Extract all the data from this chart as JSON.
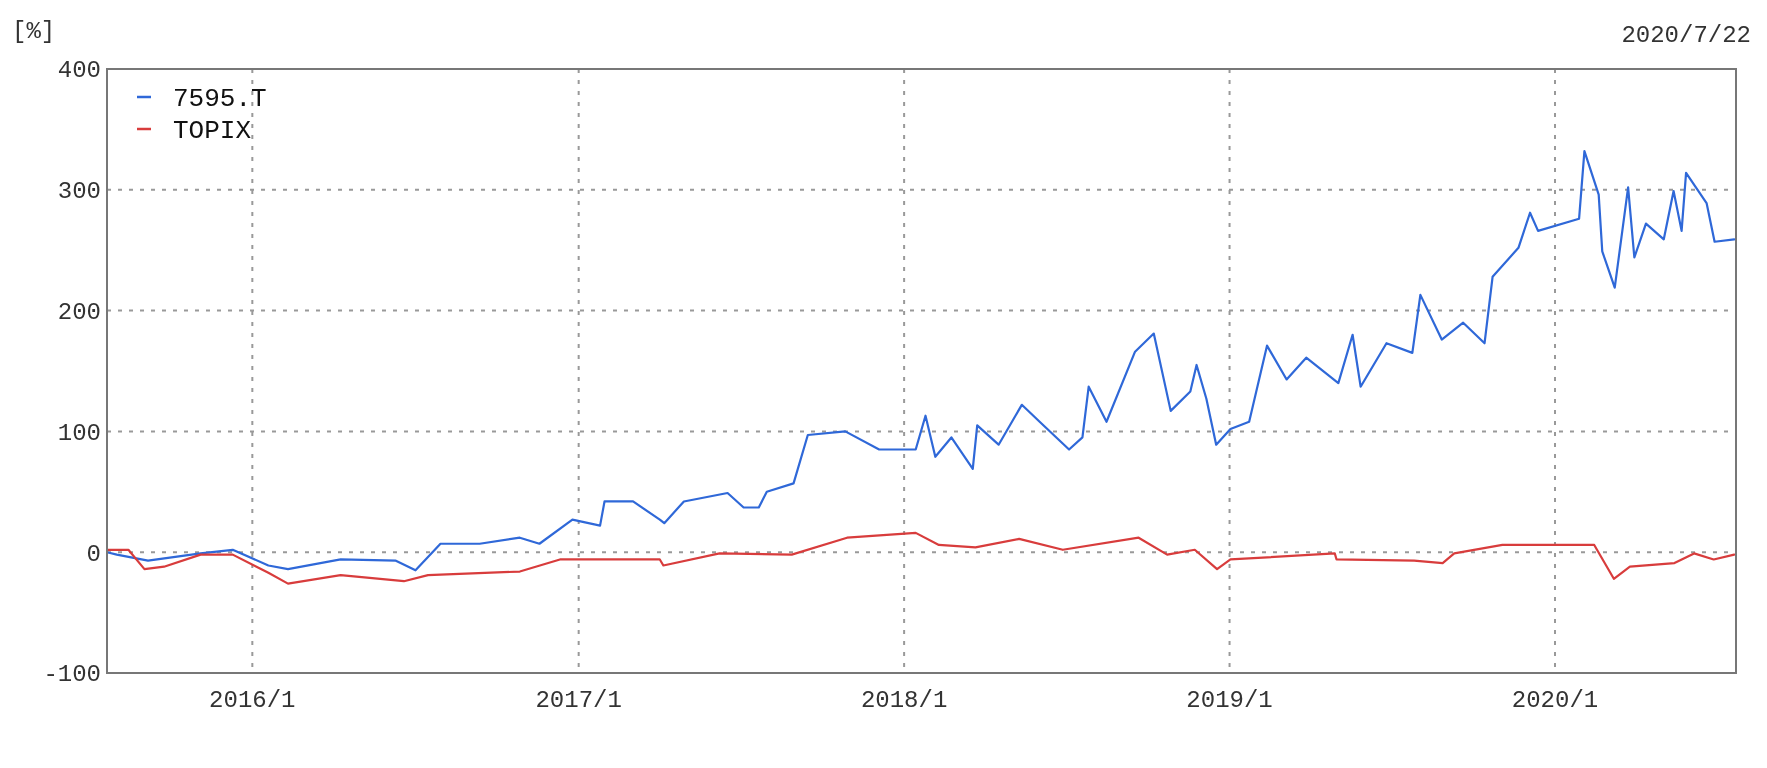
{
  "chart_data": {
    "type": "line",
    "ylabel": "[%]",
    "subtitle": "2020/7/22",
    "xlim": [
      "2015-07-22",
      "2020-07-22"
    ],
    "ylim": [
      -100,
      400
    ],
    "xticks": [
      {
        "value": "2016-01-01",
        "label": "2016/1"
      },
      {
        "value": "2017-01-01",
        "label": "2017/1"
      },
      {
        "value": "2018-01-01",
        "label": "2018/1"
      },
      {
        "value": "2019-01-01",
        "label": "2019/1"
      },
      {
        "value": "2020-01-01",
        "label": "2020/1"
      }
    ],
    "yticks": [
      -100,
      0,
      100,
      200,
      300,
      400
    ],
    "grid": true,
    "legend": "top left",
    "line_style": "solid",
    "marker": "none",
    "series": [
      {
        "name": "7595.T",
        "color": "#2f68d8",
        "x": [
          "2015-07-22",
          "2015-08-02",
          "2015-09-06",
          "2015-11-04",
          "2015-12-10",
          "2016-01-19",
          "2016-02-10",
          "2016-04-09",
          "2016-06-10",
          "2016-07-02",
          "2016-07-30",
          "2016-09-12",
          "2016-10-27",
          "2016-11-18",
          "2016-12-25",
          "2017-01-25",
          "2017-01-30",
          "2017-03-03",
          "2017-04-02",
          "2017-04-07",
          "2017-04-29",
          "2017-06-17",
          "2017-07-05",
          "2017-07-22",
          "2017-07-31",
          "2017-08-30",
          "2017-09-15",
          "2017-10-27",
          "2017-12-04",
          "2018-01-14",
          "2018-01-25",
          "2018-02-05",
          "2018-02-23",
          "2018-03-19",
          "2018-03-24",
          "2018-04-17",
          "2018-05-13",
          "2018-06-02",
          "2018-07-05",
          "2018-07-20",
          "2018-07-27",
          "2018-08-16",
          "2018-09-17",
          "2018-10-08",
          "2018-10-27",
          "2018-11-18",
          "2018-11-25",
          "2018-12-06",
          "2018-12-17",
          "2019-01-02",
          "2019-01-23",
          "2019-02-12",
          "2019-03-06",
          "2019-03-28",
          "2019-05-03",
          "2019-05-19",
          "2019-05-28",
          "2019-06-26",
          "2019-07-25",
          "2019-08-03",
          "2019-08-27",
          "2019-09-20",
          "2019-10-14",
          "2019-10-23",
          "2019-11-21",
          "2019-12-04",
          "2019-12-13",
          "2020-01-28",
          "2020-02-03",
          "2020-02-19",
          "2020-02-23",
          "2020-03-08",
          "2020-03-23",
          "2020-03-30",
          "2020-04-12",
          "2020-05-02",
          "2020-05-13",
          "2020-05-22",
          "2020-05-27",
          "2020-06-19",
          "2020-06-28",
          "2020-07-20"
        ],
        "values": [
          0,
          -2,
          -7,
          -1,
          2,
          -11,
          -14,
          -6,
          -7,
          -15,
          7,
          7,
          12,
          7,
          27,
          22,
          42,
          42,
          27,
          24,
          42,
          49,
          37,
          37,
          50,
          57,
          97,
          100,
          85,
          85,
          113,
          79,
          95,
          69,
          105,
          89,
          122,
          108,
          85,
          95,
          137,
          108,
          166,
          181,
          117,
          133,
          155,
          127,
          89,
          102,
          108,
          171,
          143,
          161,
          140,
          180,
          137,
          173,
          165,
          213,
          176,
          190,
          173,
          228,
          252,
          281,
          266,
          276,
          332,
          296,
          249,
          219,
          302,
          244,
          272,
          259,
          299,
          266,
          314,
          289,
          257,
          259
        ]
      },
      {
        "name": "TOPIX",
        "color": "#d83c3c",
        "x": [
          "2015-07-22",
          "2015-08-15",
          "2015-09-02",
          "2015-09-24",
          "2015-11-04",
          "2015-12-10",
          "2016-01-19",
          "2016-02-10",
          "2016-04-09",
          "2016-06-19",
          "2016-07-16",
          "2016-10-27",
          "2016-12-11",
          "2017-04-02",
          "2017-04-06",
          "2017-06-08",
          "2017-08-28",
          "2017-10-29",
          "2018-01-14",
          "2018-02-09",
          "2018-03-22",
          "2018-05-10",
          "2018-06-28",
          "2018-09-21",
          "2018-10-23",
          "2018-11-23",
          "2018-12-18",
          "2019-01-02",
          "2019-04-29",
          "2019-05-01",
          "2019-07-27",
          "2019-08-28",
          "2019-09-10",
          "2019-11-03",
          "2020-02-14",
          "2020-03-07",
          "2020-03-25",
          "2020-05-14",
          "2020-06-05",
          "2020-06-27",
          "2020-07-20"
        ],
        "values": [
          2,
          2,
          -14,
          -12,
          -2,
          -2,
          -17,
          -26,
          -19,
          -24,
          -19,
          -16,
          -6,
          -6,
          -11,
          -1,
          -2,
          12,
          16,
          6,
          4,
          11,
          2,
          12,
          -2,
          2,
          -14,
          -6,
          -1,
          -6,
          -7,
          -9,
          -1,
          6,
          6,
          -22,
          -12,
          -9,
          -1,
          -6,
          -2
        ]
      }
    ]
  }
}
